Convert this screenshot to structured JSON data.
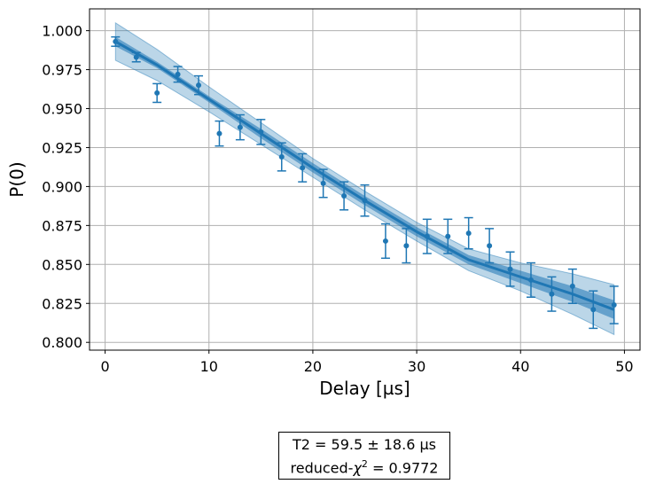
{
  "chart_data": {
    "type": "scatter",
    "xlabel": "Delay [µs]",
    "ylabel": "P(0)",
    "xlim": [
      -1.5,
      51.5
    ],
    "ylim": [
      0.795,
      1.014
    ],
    "xticks": [
      0,
      10,
      20,
      30,
      40,
      50
    ],
    "xtick_labels": [
      "0",
      "10",
      "20",
      "30",
      "40",
      "50"
    ],
    "yticks": [
      0.8,
      0.825,
      0.85,
      0.875,
      0.9,
      0.925,
      0.95,
      0.975,
      1.0
    ],
    "ytick_labels": [
      "0.800",
      "0.825",
      "0.850",
      "0.875",
      "0.900",
      "0.925",
      "0.950",
      "0.975",
      "1.000"
    ],
    "grid": true,
    "color": "#1f77b4",
    "series": [
      {
        "kind": "data_with_errorbars",
        "x": [
          1,
          3,
          5,
          7,
          9,
          11,
          13,
          15,
          17,
          19,
          21,
          23,
          25,
          27,
          29,
          31,
          33,
          35,
          37,
          39,
          41,
          43,
          45,
          47,
          49
        ],
        "y": [
          0.993,
          0.983,
          0.96,
          0.972,
          0.965,
          0.934,
          0.938,
          0.935,
          0.919,
          0.912,
          0.902,
          0.894,
          0.891,
          0.865,
          0.862,
          0.868,
          0.868,
          0.87,
          0.862,
          0.847,
          0.84,
          0.831,
          0.836,
          0.821,
          0.824
        ],
        "yerr": [
          0.003,
          0.003,
          0.006,
          0.005,
          0.006,
          0.008,
          0.008,
          0.008,
          0.009,
          0.009,
          0.009,
          0.009,
          0.01,
          0.011,
          0.011,
          0.011,
          0.011,
          0.01,
          0.011,
          0.011,
          0.011,
          0.011,
          0.011,
          0.012,
          0.012
        ]
      },
      {
        "kind": "fit_curve",
        "x": [
          1,
          5,
          10,
          15,
          20,
          25,
          30,
          35,
          40,
          45,
          49
        ],
        "y": [
          0.993,
          0.978,
          0.956,
          0.934,
          0.912,
          0.891,
          0.871,
          0.853,
          0.842,
          0.831,
          0.821
        ],
        "band_inner": [
          0.003,
          0.002,
          0.002,
          0.003,
          0.003,
          0.003,
          0.003,
          0.003,
          0.004,
          0.005,
          0.006
        ],
        "band_outer": [
          0.012,
          0.01,
          0.008,
          0.007,
          0.006,
          0.006,
          0.006,
          0.007,
          0.009,
          0.013,
          0.016
        ]
      }
    ]
  },
  "fit_report": {
    "line1": "T2 =   59.5 ±  18.6 µs",
    "line2_prefix": "reduced-",
    "line2_chi": "χ",
    "line2_sup": "2",
    "line2_suffix": " =  0.9772"
  }
}
